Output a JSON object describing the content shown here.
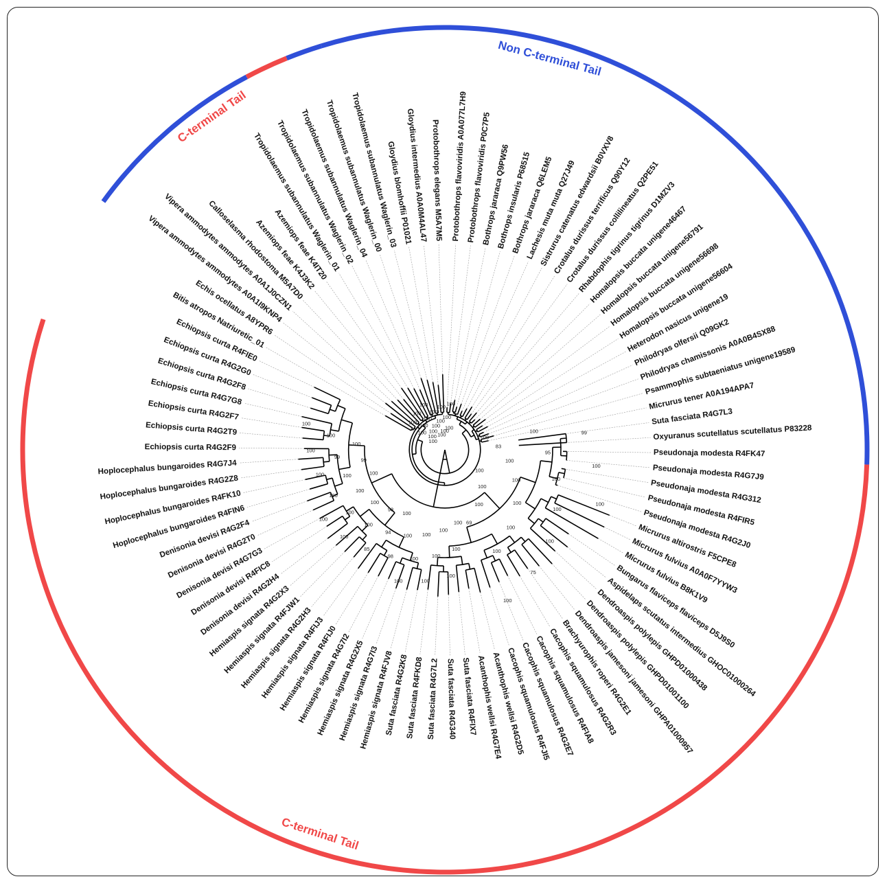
{
  "colors": {
    "c_terminal": "#f04848",
    "non_c_terminal": "#2f4fd8"
  },
  "group_labels": {
    "non_c_terminal": "Non C-terminal Tail",
    "c_terminal_top": "C-terminal Tail",
    "c_terminal_bottom": "C-terminal Tail"
  },
  "taxa": [
    "Protobothrops flavoviridis A0A077L7H9",
    "Protobothrops flavoviridis P0C7P5",
    "Bothrops jararaca Q9PW56",
    "Bothrops insularis P68515",
    "Bothrops jararaca Q6LEM5",
    "Lachesis muta muta Q27J49",
    "Sistrurus catenatus edwardsii B0VXV8",
    "Crotalus durissus terrificus Q90Y12",
    "Crotalus durissus collilineatus Q2PE51",
    "Rhabdophis tigrinus tigrinus D1MZV3",
    "Homalopsis buccata unigene46467",
    "Homalopsis buccata unigene56791",
    "Homalopsis buccata unigene56698",
    "Homalopsis buccata unigene56604",
    "Heterodon nasicus unigene19",
    "Philodryas olfersii Q09GK2",
    "Philodryas chamissonis A0A0B4SX88",
    "Psammophis subtaeniatus unigene19589",
    "Micrurus tener A0A194APA7",
    "Suta fasciata R4G7L3",
    "Oxyuranus scutellatus scutellatus P83228",
    "Pseudonaja modesta R4FK47",
    "Pseudonaja modesta R4G7J9",
    "Pseudonaja modesta R4G312",
    "Pseudonaja modesta R4FIR5",
    "Pseudonaja modesta R4G2J0",
    "Micrurus altirostris F5CPE8",
    "Micrurus fulvius A0A0F7YYW3",
    "Micrurus fulvius B8K1V9",
    "Bungarus flaviceps flaviceps D5J9S0",
    "Aspidelaps scutatus intermedius GHOC01000264",
    "Dendroaspis polylepis GHPD01000438",
    "Dendroaspis polylepis GHPD01001100",
    "Dendroaspis jamesoni jamesoni GHPA01000957",
    "Brachyurophis roperi R4G2E1",
    "Cacophis squamulosus R4G2R3",
    "Cacophis squamulosus R4FIA8",
    "Cacophis squamulosus R4G2E7",
    "Cacophis squamulosus R4FJI5",
    "Acanthophis wellsi R4G2D5",
    "Acanthophis wellsi R4G7E4",
    "Suta fasciata R4FIX7",
    "Suta fasciata R4G340",
    "Suta fasciata R4G7L2",
    "Suta fasciata R4FKD8",
    "Suta fasciata R4G2K8",
    "Hemiaspis signata R4FJV8",
    "Hemiaspis signata R4G7I3",
    "Hemiaspis signata R4G2X5",
    "Hemiaspis signata R4G7I2",
    "Hemiaspis signata R4FIJ0",
    "Hemiaspis signata R4FIJ3",
    "Hemiaspis signata R4G2H3",
    "Hemiaspis signata R4FJW1",
    "Hemiaspis signata R4G2X3",
    "Denisonia devisi R4G2H4",
    "Denisonia devisi R4FIC8",
    "Denisonia devisi R4G7G3",
    "Denisonia devisi R4G2T0",
    "Denisonia devisi R4G2F4",
    "Hoplocephalus bungaroides R4FIN6",
    "Hoplocephalus bungaroides R4FK10",
    "Hoplocephalus bungaroides R4G2Z8",
    "Hoplocephalus bungaroides R4G7J4",
    "Echiopsis curta R4G2F9",
    "Echiopsis curta R4G2T9",
    "Echiopsis curta R4G2F7",
    "Echiopsis curta R4G7G8",
    "Echiopsis curta R4G2F8",
    "Echiopsis curta R4G2G0",
    "Echiopsis curta R4FIE0",
    "Bitis atropos Natriuretic_01",
    "Echis ocellatus A8YPR6",
    "Vipera ammodytes ammodytes A0A1I9KNP4",
    "Vipera ammodytes ammodytes A0A1J0CZN1",
    "Calloselasma rhodostoma M5A7D0",
    "Azemiops feae K4J3K2",
    "Azemiops feae K4IT20",
    "Tropidolaemus subannulatus Waglerin_01",
    "Tropidolaemus subannulatus Waglerin_02",
    "Tropidolaemus subannulatus Waglerin_04",
    "Tropidolaemus subannulatus Waglerin_00",
    "Tropidolaemus subannulatus Waglerin_03",
    "Gloydius blomhoffii P01021",
    "Gloydius intermedius A0A0M4AL47",
    "Protobothrops elegans M5A7M5"
  ],
  "support_values": {
    "right_clade": [
      "100",
      "100",
      "99",
      "83",
      "95",
      "100",
      "100",
      "100",
      "100",
      "100",
      "100",
      "100",
      "100",
      "100",
      "100",
      "100",
      "75",
      "100",
      "100",
      "100",
      "69"
    ],
    "left_clade": [
      "100",
      "100",
      "100",
      "100",
      "100",
      "100",
      "100",
      "100",
      "100",
      "100",
      "98",
      "100",
      "94",
      "85",
      "93",
      "100",
      "100",
      "100",
      "100",
      "100",
      "100",
      "100",
      "100",
      "100",
      "100",
      "99",
      "99",
      "100",
      "100",
      "100",
      "100"
    ],
    "viperid_clade": [
      "100",
      "100",
      "100",
      "100",
      "100",
      "100",
      "100",
      "100",
      "100",
      "100",
      "100",
      "100",
      "100",
      "100",
      "100",
      "100",
      "100",
      "100"
    ]
  }
}
